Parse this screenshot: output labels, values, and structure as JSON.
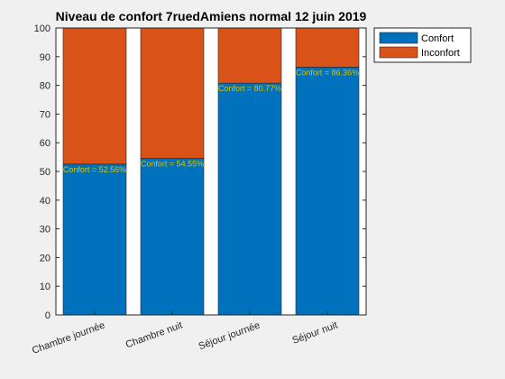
{
  "chart_data": {
    "type": "bar",
    "stacked": true,
    "title": "Niveau de confort 7ruedAmiens normal 12 juin 2019",
    "xlabel": "",
    "ylabel": "",
    "ylim": [
      0,
      100
    ],
    "yticks": [
      "0",
      "10",
      "20",
      "30",
      "40",
      "50",
      "60",
      "70",
      "80",
      "90",
      "100"
    ],
    "categories": [
      "Chambre journée",
      "Chambre nuit",
      "Séjour journée",
      "Séjour nuit"
    ],
    "series": [
      {
        "name": "Confort",
        "values": [
          52.56,
          54.55,
          80.77,
          86.36
        ],
        "color": "#0072bd"
      },
      {
        "name": "Inconfort",
        "values": [
          47.44,
          45.45,
          19.23,
          13.64
        ],
        "color": "#d95319"
      }
    ],
    "data_labels": [
      "Confort = 52.56%",
      "Confort = 54.55%",
      "Confort = 80.77%",
      "Confort = 86.36%"
    ],
    "legend_position": "top-right",
    "grid": false
  }
}
